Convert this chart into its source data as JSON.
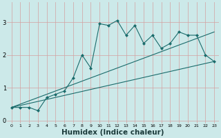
{
  "bg_color": "#cce9e9",
  "grid_color": "#aad4d4",
  "line_color": "#1a6b6b",
  "xlabel": "Humidex (Indice chaleur)",
  "xlabel_fontsize": 7.5,
  "xlim": [
    -0.5,
    23.5
  ],
  "ylim": [
    -0.1,
    3.6
  ],
  "yticks": [
    0,
    1,
    2,
    3
  ],
  "xticks": [
    0,
    1,
    2,
    3,
    4,
    5,
    6,
    7,
    8,
    9,
    10,
    11,
    12,
    13,
    14,
    15,
    16,
    17,
    18,
    19,
    20,
    21,
    22,
    23
  ],
  "series1": {
    "x": [
      0,
      1,
      2,
      3,
      4,
      5,
      6,
      7,
      8,
      9,
      10,
      11,
      12,
      13,
      14,
      15,
      16,
      17,
      18,
      19,
      20,
      21,
      22,
      23
    ],
    "y": [
      0.4,
      0.4,
      0.4,
      0.3,
      0.7,
      0.8,
      0.9,
      1.3,
      2.0,
      1.6,
      2.95,
      2.9,
      3.05,
      2.6,
      2.9,
      2.35,
      2.6,
      2.2,
      2.35,
      2.7,
      2.6,
      2.6,
      2.0,
      1.8
    ]
  },
  "series2_line": {
    "x": [
      0,
      23
    ],
    "y": [
      0.4,
      2.7
    ]
  },
  "series3_line": {
    "x": [
      0,
      23
    ],
    "y": [
      0.4,
      1.8
    ]
  },
  "marker_size": 2.5,
  "linewidth": 0.8
}
